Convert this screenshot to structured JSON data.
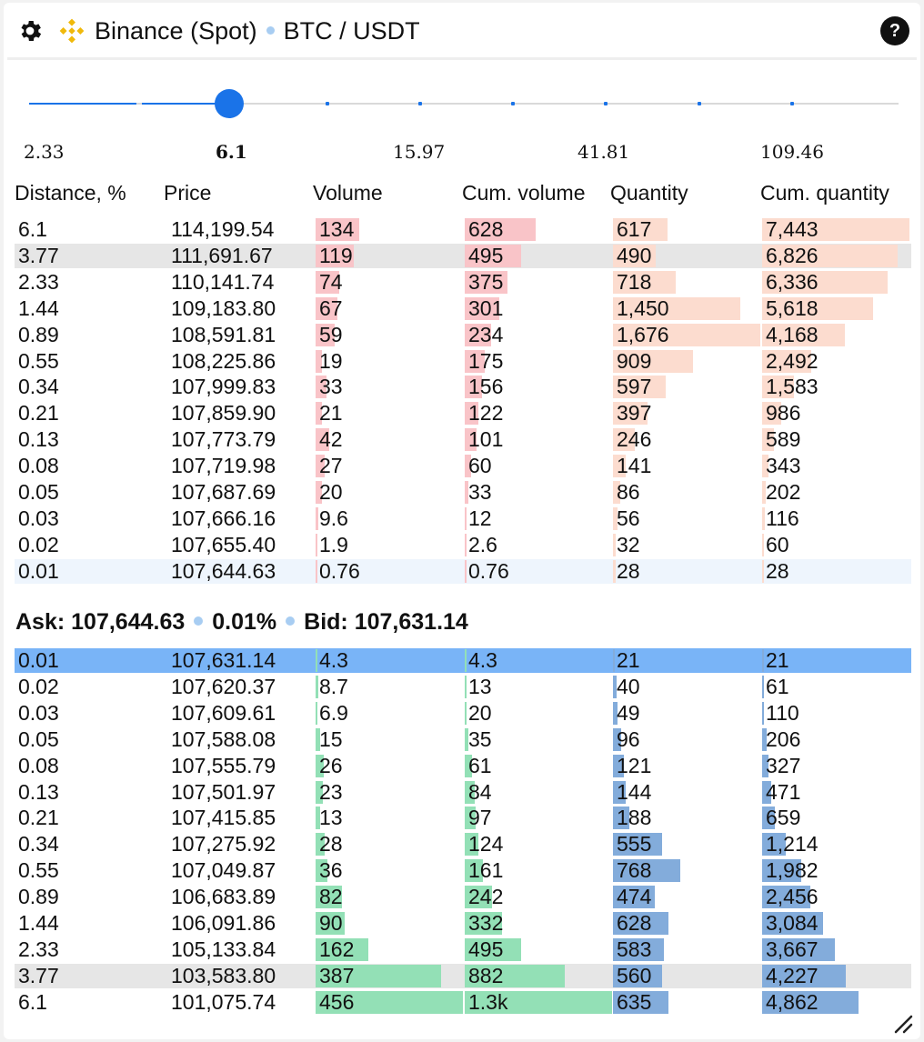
{
  "header": {
    "exchange": "Binance (Spot)",
    "pair": "BTC / USDT",
    "help_label": "?"
  },
  "slider": {
    "labels": [
      "2.33",
      "6.1",
      "15.97",
      "41.81",
      "109.46"
    ],
    "selected_label": "6.1"
  },
  "columns": [
    "Distance, %",
    "Price",
    "Volume",
    "Cum. volume",
    "Quantity",
    "Cum. quantity"
  ],
  "asks": [
    [
      "6.1",
      "114,199.54",
      "134",
      "628",
      "617",
      "7,443"
    ],
    [
      "3.77",
      "111,691.67",
      "119",
      "495",
      "490",
      "6,826"
    ],
    [
      "2.33",
      "110,141.74",
      "74",
      "375",
      "718",
      "6,336"
    ],
    [
      "1.44",
      "109,183.80",
      "67",
      "301",
      "1,450",
      "5,618"
    ],
    [
      "0.89",
      "108,591.81",
      "59",
      "234",
      "1,676",
      "4,168"
    ],
    [
      "0.55",
      "108,225.86",
      "19",
      "175",
      "909",
      "2,492"
    ],
    [
      "0.34",
      "107,999.83",
      "33",
      "156",
      "597",
      "1,583"
    ],
    [
      "0.21",
      "107,859.90",
      "21",
      "122",
      "397",
      "986"
    ],
    [
      "0.13",
      "107,773.79",
      "42",
      "101",
      "246",
      "589"
    ],
    [
      "0.08",
      "107,719.98",
      "27",
      "60",
      "141",
      "343"
    ],
    [
      "0.05",
      "107,687.69",
      "20",
      "33",
      "86",
      "202"
    ],
    [
      "0.03",
      "107,666.16",
      "9.6",
      "12",
      "56",
      "116"
    ],
    [
      "0.02",
      "107,655.40",
      "1.9",
      "2.6",
      "32",
      "60"
    ],
    [
      "0.01",
      "107,644.63",
      "0.76",
      "0.76",
      "28",
      "28"
    ]
  ],
  "spread": {
    "ask_text": "Ask: 107,644.63",
    "pct_text": "0.01%",
    "bid_text": "Bid: 107,631.14"
  },
  "bids": [
    [
      "0.01",
      "107,631.14",
      "4.3",
      "4.3",
      "21",
      "21"
    ],
    [
      "0.02",
      "107,620.37",
      "8.7",
      "13",
      "40",
      "61"
    ],
    [
      "0.03",
      "107,609.61",
      "6.9",
      "20",
      "49",
      "110"
    ],
    [
      "0.05",
      "107,588.08",
      "15",
      "35",
      "96",
      "206"
    ],
    [
      "0.08",
      "107,555.79",
      "26",
      "61",
      "121",
      "327"
    ],
    [
      "0.13",
      "107,501.97",
      "23",
      "84",
      "144",
      "471"
    ],
    [
      "0.21",
      "107,415.85",
      "13",
      "97",
      "188",
      "659"
    ],
    [
      "0.34",
      "107,275.92",
      "28",
      "124",
      "555",
      "1,214"
    ],
    [
      "0.55",
      "107,049.87",
      "36",
      "161",
      "768",
      "1,982"
    ],
    [
      "0.89",
      "106,683.89",
      "82",
      "242",
      "474",
      "2,456"
    ],
    [
      "1.44",
      "106,091.86",
      "90",
      "332",
      "628",
      "3,084"
    ],
    [
      "2.33",
      "105,133.84",
      "162",
      "495",
      "583",
      "3,667"
    ],
    [
      "3.77",
      "103,583.80",
      "387",
      "882",
      "560",
      "4,227"
    ],
    [
      "6.1",
      "101,075.74",
      "456",
      "1.3k",
      "635",
      "4,862"
    ]
  ],
  "bar_fractions": {
    "asks": [
      [
        0.294,
        0.484,
        0.368,
        1.0
      ],
      [
        0.261,
        0.381,
        0.292,
        0.917
      ],
      [
        0.162,
        0.289,
        0.428,
        0.851
      ],
      [
        0.147,
        0.232,
        0.865,
        0.755
      ],
      [
        0.129,
        0.18,
        1.0,
        0.56
      ],
      [
        0.042,
        0.135,
        0.542,
        0.335
      ],
      [
        0.072,
        0.12,
        0.356,
        0.213
      ],
      [
        0.046,
        0.094,
        0.237,
        0.132
      ],
      [
        0.092,
        0.078,
        0.147,
        0.079
      ],
      [
        0.059,
        0.046,
        0.084,
        0.046
      ],
      [
        0.044,
        0.025,
        0.051,
        0.027
      ],
      [
        0.021,
        0.009,
        0.033,
        0.016
      ],
      [
        0.004,
        0.002,
        0.019,
        0.008
      ],
      [
        0.002,
        0.001,
        0.017,
        0.004
      ]
    ],
    "bids": [
      [
        0.009,
        0.003,
        0.013,
        0.003
      ],
      [
        0.019,
        0.01,
        0.024,
        0.008
      ],
      [
        0.015,
        0.015,
        0.029,
        0.015
      ],
      [
        0.033,
        0.027,
        0.057,
        0.028
      ],
      [
        0.057,
        0.047,
        0.072,
        0.044
      ],
      [
        0.05,
        0.065,
        0.086,
        0.063
      ],
      [
        0.029,
        0.075,
        0.112,
        0.089
      ],
      [
        0.061,
        0.095,
        0.331,
        0.163
      ],
      [
        0.079,
        0.124,
        0.458,
        0.266
      ],
      [
        0.18,
        0.186,
        0.283,
        0.33
      ],
      [
        0.197,
        0.255,
        0.375,
        0.414
      ],
      [
        0.355,
        0.381,
        0.348,
        0.493
      ],
      [
        0.849,
        0.678,
        0.334,
        0.568
      ],
      [
        1.0,
        1.0,
        0.379,
        0.653
      ]
    ]
  },
  "colors": {
    "accent": "#1a73e8",
    "ask_volume": "#f9c4c8",
    "ask_quantity": "#fcdccf",
    "bid_volume": "#93e0b6",
    "bid_quantity": "#83acdb",
    "binance_yellow": "#f0b90b"
  },
  "icons": {
    "settings": "gear-icon",
    "logo": "binance-logo-icon",
    "help": "help-icon",
    "resize": "resize-handle-icon"
  }
}
